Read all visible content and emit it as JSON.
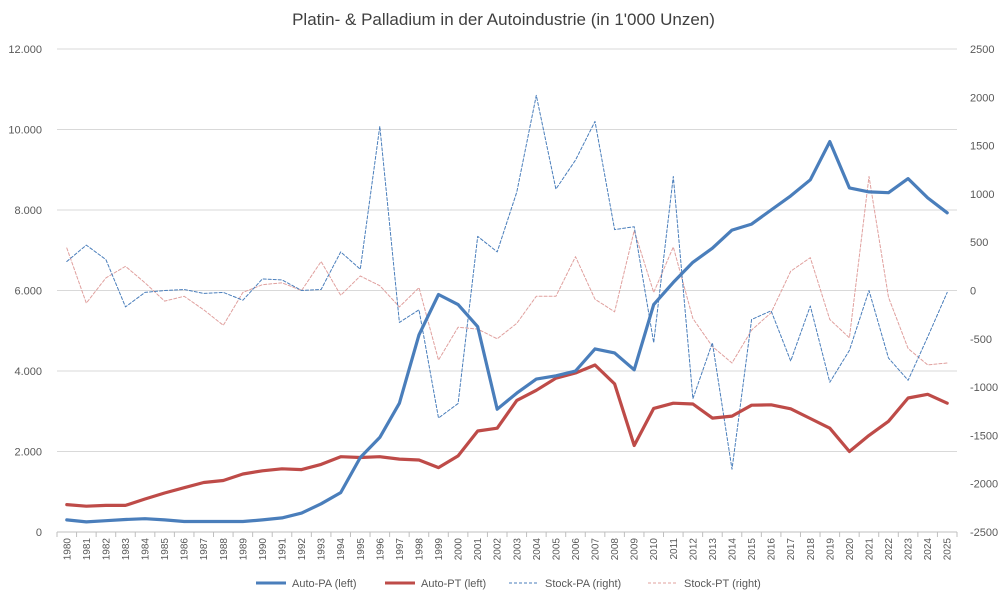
{
  "chart_data": {
    "type": "line",
    "title": "Platin- & Palladium in der Autoindustrie (in 1'000 Unzen)",
    "left_axis": {
      "ylim": [
        0,
        12000
      ],
      "ticks": [
        0,
        2000,
        4000,
        6000,
        8000,
        10000,
        12000
      ],
      "tick_labels": [
        "0",
        "2.000",
        "4.000",
        "6.000",
        "8.000",
        "10.000",
        "12.000"
      ]
    },
    "right_axis": {
      "ylim": [
        -2500,
        2500
      ],
      "ticks": [
        -2500,
        -2000,
        -1500,
        -1000,
        -500,
        0,
        500,
        1000,
        1500,
        2000,
        2500
      ],
      "tick_labels": [
        "-2500",
        "-2000",
        "-1500",
        "-1000",
        "-500",
        "0",
        "500",
        "1000",
        "1500",
        "2000",
        "2500"
      ]
    },
    "x": [
      "1980",
      "1981",
      "1982",
      "1983",
      "1984",
      "1985",
      "1986",
      "1987",
      "1988",
      "1989",
      "1990",
      "1991",
      "1992",
      "1993",
      "1994",
      "1995",
      "1996",
      "1997",
      "1998",
      "1999",
      "2000",
      "2001",
      "2002",
      "2003",
      "2004",
      "2005",
      "2006",
      "2007",
      "2008",
      "2009",
      "2010",
      "2011",
      "2012",
      "2013",
      "2014",
      "2015",
      "2016",
      "2017",
      "2018",
      "2019",
      "2020",
      "2021",
      "2022",
      "2023",
      "2024",
      "2025"
    ],
    "grid": true,
    "legend_position": "bottom",
    "series": [
      {
        "name": "Auto-PA (left)",
        "axis": "left",
        "color": "#4a7ebb",
        "style": "solid-thick",
        "values": [
          300,
          250,
          280,
          310,
          330,
          300,
          260,
          260,
          260,
          260,
          300,
          350,
          470,
          700,
          980,
          1850,
          2350,
          3200,
          4900,
          5900,
          5650,
          5100,
          3050,
          3450,
          3800,
          3880,
          4000,
          4550,
          4450,
          4030,
          5650,
          6200,
          6700,
          7050,
          7500,
          7650,
          8000,
          8350,
          8750,
          9700,
          8550,
          8450,
          8430,
          8780,
          8300,
          7930
        ]
      },
      {
        "name": "Auto-PT (left)",
        "axis": "left",
        "color": "#be4b48",
        "style": "solid-thick",
        "values": [
          680,
          640,
          660,
          660,
          820,
          970,
          1100,
          1230,
          1280,
          1440,
          1520,
          1570,
          1550,
          1680,
          1870,
          1850,
          1870,
          1810,
          1790,
          1600,
          1890,
          2510,
          2580,
          3270,
          3520,
          3820,
          3950,
          4150,
          3680,
          2150,
          3070,
          3200,
          3180,
          2830,
          2880,
          3150,
          3160,
          3060,
          2820,
          2580,
          2000,
          2400,
          2750,
          3330,
          3420,
          3200
        ]
      },
      {
        "name": "Stock-PA (right)",
        "axis": "right",
        "color": "#4a7ebb",
        "style": "dashed-thin",
        "values": [
          300,
          470,
          320,
          -170,
          -20,
          0,
          10,
          -30,
          -20,
          -100,
          120,
          110,
          0,
          10,
          400,
          220,
          1700,
          -330,
          -200,
          -1320,
          -1170,
          560,
          400,
          1020,
          2020,
          1050,
          1350,
          1750,
          630,
          660,
          -540,
          1180,
          -1120,
          -540,
          -1850,
          -300,
          -210,
          -730,
          -160,
          -950,
          -620,
          0,
          -700,
          -930,
          -480,
          -20
        ]
      },
      {
        "name": "Stock-PT (right)",
        "axis": "right",
        "color": "#e0a09e",
        "style": "dashed-thin",
        "values": [
          440,
          -130,
          130,
          250,
          80,
          -110,
          -60,
          -200,
          -360,
          -20,
          60,
          80,
          0,
          300,
          -50,
          150,
          50,
          -170,
          30,
          -720,
          -380,
          -400,
          -500,
          -340,
          -60,
          -60,
          350,
          -90,
          -220,
          620,
          -20,
          450,
          -290,
          -580,
          -750,
          -410,
          -230,
          200,
          340,
          -300,
          -490,
          1180,
          -70,
          -600,
          -770,
          -750
        ]
      }
    ]
  }
}
